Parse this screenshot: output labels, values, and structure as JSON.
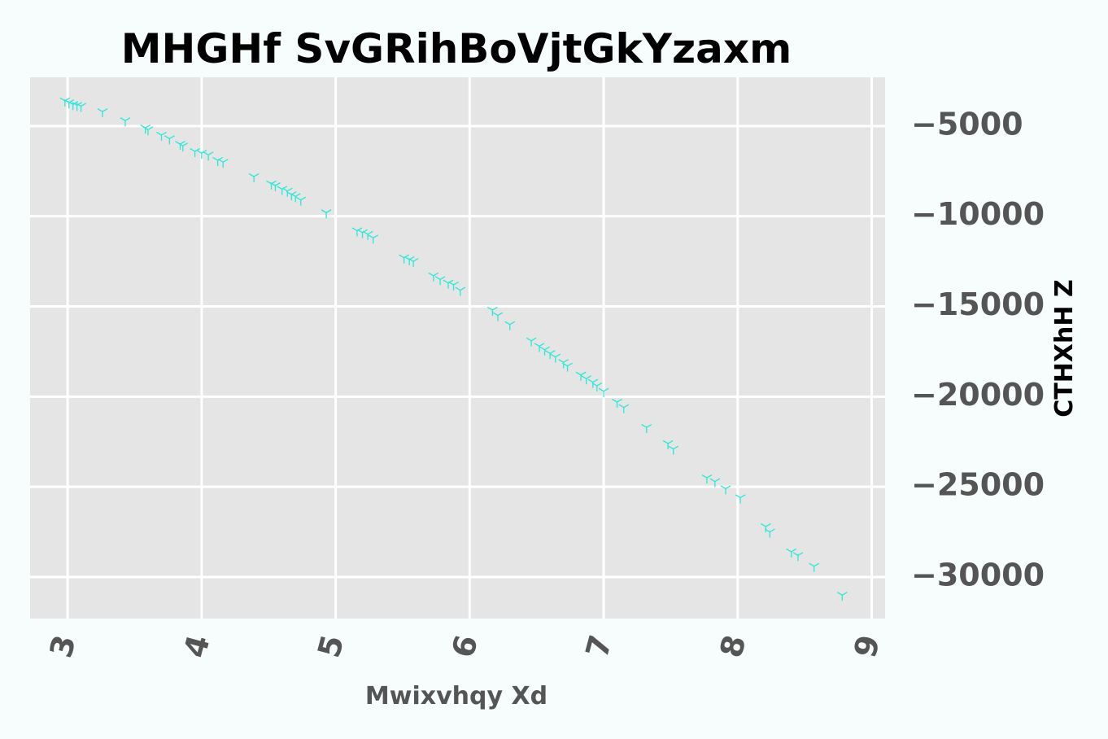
{
  "chart_data": {
    "type": "scatter",
    "title": "MHGHf SvGRihBoVjtGkYzaxm",
    "xlabel": "Mwixvhqy Xd",
    "ylabel": "CTHXhH Z",
    "xlim": [
      2.72,
      9.1
    ],
    "ylim": [
      -32300,
      -2300
    ],
    "xticks": [
      3,
      4,
      5,
      6,
      7,
      8,
      9
    ],
    "xtick_labels": [
      "3",
      "4",
      "5",
      "6",
      "7",
      "8",
      "9"
    ],
    "yticks": [
      -5000,
      -10000,
      -15000,
      -20000,
      -25000,
      -30000
    ],
    "ytick_labels": [
      "−5000",
      "−10000",
      "−15000",
      "−20000",
      "−25000",
      "−30000"
    ],
    "grid": true,
    "y_axis_side": "right",
    "marker": "tri_down",
    "color": "#2ee6d6",
    "background": "#e5e5e5",
    "x": [
      2.98,
      3.01,
      3.04,
      3.07,
      3.1,
      3.26,
      3.43,
      3.58,
      3.6,
      3.7,
      3.76,
      3.84,
      3.86,
      3.95,
      4.0,
      4.05,
      4.12,
      4.16,
      4.39,
      4.52,
      4.55,
      4.6,
      4.64,
      4.67,
      4.7,
      4.74,
      4.93,
      5.16,
      5.2,
      5.24,
      5.28,
      5.51,
      5.55,
      5.58,
      5.73,
      5.78,
      5.84,
      5.88,
      5.93,
      6.17,
      6.21,
      6.3,
      6.46,
      6.52,
      6.56,
      6.6,
      6.64,
      6.7,
      6.73,
      6.83,
      6.87,
      6.92,
      6.95,
      7.0,
      7.1,
      7.15,
      7.32,
      7.48,
      7.52,
      7.77,
      7.83,
      7.91,
      8.02,
      8.21,
      8.24,
      8.4,
      8.45,
      8.57,
      8.78
    ],
    "y": [
      -3600,
      -3700,
      -3800,
      -3850,
      -3900,
      -4200,
      -4700,
      -5100,
      -5200,
      -5500,
      -5700,
      -6000,
      -6100,
      -6400,
      -6500,
      -6600,
      -6900,
      -7000,
      -7800,
      -8200,
      -8300,
      -8500,
      -8600,
      -8800,
      -8900,
      -9100,
      -9800,
      -10800,
      -10900,
      -11000,
      -11200,
      -12300,
      -12400,
      -12500,
      -13300,
      -13500,
      -13700,
      -13800,
      -14100,
      -15200,
      -15500,
      -16000,
      -16900,
      -17200,
      -17400,
      -17600,
      -17800,
      -18100,
      -18300,
      -18800,
      -19000,
      -19200,
      -19400,
      -19700,
      -20300,
      -20600,
      -21700,
      -22600,
      -22900,
      -24500,
      -24700,
      -25100,
      -25600,
      -27200,
      -27500,
      -28600,
      -28800,
      -29400,
      -31000
    ]
  }
}
